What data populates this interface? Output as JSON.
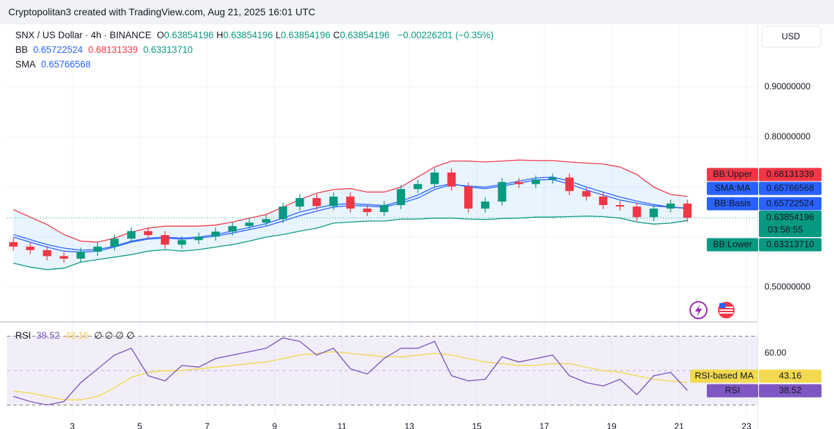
{
  "header": {
    "text": "Cryptopolitan3 created with TradingView.com, Aug 21, 2025 16:01 UTC"
  },
  "legend": {
    "symbol": "SNX / US Dollar · 4h · BINANCE",
    "ohlc": [
      {
        "key": "O",
        "value": "0.63854196"
      },
      {
        "key": "H",
        "value": "0.63854196"
      },
      {
        "key": "L",
        "value": "0.63854196"
      },
      {
        "key": "C",
        "value": "0.63854196"
      }
    ],
    "change": "−0.00226201 (−0.35%)",
    "bb": "BB",
    "sma": "SMA"
  },
  "currency": "USD",
  "countdown": "03:58:55",
  "rsi_legend": {
    "extra": "∅ ∅ ∅ ∅"
  },
  "chart_data": [
    {
      "type": "candlestick",
      "x": [
        1.25,
        1.75,
        2.25,
        2.75,
        3.25,
        3.75,
        4.25,
        4.75,
        5.25,
        5.75,
        6.25,
        6.75,
        7.25,
        7.75,
        8.25,
        8.75,
        9.25,
        9.75,
        10.25,
        10.75,
        11.25,
        11.75,
        12.25,
        12.75,
        13.25,
        13.75,
        14.25,
        14.75,
        15.25,
        15.75,
        16.25,
        16.75,
        17.25,
        17.75,
        18.25,
        18.75,
        19.25,
        19.75,
        20.25,
        20.75,
        21.25
      ],
      "open": [
        0.59,
        0.581,
        0.574,
        0.562,
        0.557,
        0.571,
        0.581,
        0.597,
        0.612,
        0.604,
        0.585,
        0.594,
        0.601,
        0.611,
        0.622,
        0.629,
        0.636,
        0.661,
        0.678,
        0.662,
        0.681,
        0.657,
        0.65,
        0.664,
        0.696,
        0.706,
        0.729,
        0.701,
        0.657,
        0.671,
        0.71,
        0.706,
        0.715,
        0.719,
        0.692,
        0.681,
        0.664,
        0.661,
        0.64,
        0.657,
        0.667
      ],
      "high": [
        0.598,
        0.589,
        0.582,
        0.57,
        0.579,
        0.589,
        0.605,
        0.62,
        0.62,
        0.612,
        0.602,
        0.609,
        0.619,
        0.63,
        0.637,
        0.644,
        0.669,
        0.686,
        0.686,
        0.689,
        0.689,
        0.665,
        0.672,
        0.704,
        0.714,
        0.737,
        0.737,
        0.709,
        0.679,
        0.718,
        0.718,
        0.723,
        0.727,
        0.727,
        0.7,
        0.689,
        0.672,
        0.669,
        0.665,
        0.675,
        0.675
      ],
      "low": [
        0.573,
        0.566,
        0.554,
        0.549,
        0.549,
        0.563,
        0.573,
        0.589,
        0.596,
        0.577,
        0.577,
        0.586,
        0.593,
        0.603,
        0.614,
        0.621,
        0.628,
        0.653,
        0.654,
        0.654,
        0.649,
        0.642,
        0.642,
        0.656,
        0.688,
        0.698,
        0.693,
        0.649,
        0.649,
        0.663,
        0.698,
        0.698,
        0.707,
        0.684,
        0.673,
        0.656,
        0.653,
        0.632,
        0.632,
        0.649,
        0.63
      ],
      "close": [
        0.581,
        0.574,
        0.562,
        0.557,
        0.571,
        0.581,
        0.597,
        0.612,
        0.604,
        0.585,
        0.594,
        0.601,
        0.611,
        0.622,
        0.629,
        0.636,
        0.661,
        0.678,
        0.662,
        0.681,
        0.657,
        0.65,
        0.664,
        0.696,
        0.706,
        0.729,
        0.701,
        0.657,
        0.671,
        0.71,
        0.706,
        0.715,
        0.719,
        0.692,
        0.681,
        0.664,
        0.661,
        0.64,
        0.657,
        0.667,
        0.63854196
      ],
      "close_label": "0.63854196",
      "up_color": "#089981",
      "down_color": "#f23645",
      "series": [
        {
          "name": "BB:Upper",
          "color": "#f23645",
          "value_label": "0.68131339",
          "values": [
            0.655,
            0.64,
            0.625,
            0.605,
            0.592,
            0.59,
            0.598,
            0.61,
            0.618,
            0.622,
            0.622,
            0.622,
            0.624,
            0.63,
            0.638,
            0.645,
            0.66,
            0.675,
            0.688,
            0.695,
            0.697,
            0.69,
            0.69,
            0.7,
            0.72,
            0.74,
            0.752,
            0.752,
            0.75,
            0.752,
            0.754,
            0.753,
            0.753,
            0.75,
            0.748,
            0.746,
            0.74,
            0.725,
            0.7,
            0.685,
            0.68131339
          ]
        },
        {
          "name": "SMA:MA",
          "color": "#2962ff",
          "value_label": "0.65766568",
          "values": [
            0.605,
            0.595,
            0.585,
            0.578,
            0.574,
            0.575,
            0.582,
            0.592,
            0.598,
            0.6,
            0.598,
            0.6,
            0.605,
            0.612,
            0.619,
            0.627,
            0.638,
            0.65,
            0.658,
            0.665,
            0.667,
            0.665,
            0.663,
            0.672,
            0.684,
            0.7,
            0.707,
            0.7,
            0.697,
            0.702,
            0.708,
            0.714,
            0.715,
            0.706,
            0.694,
            0.684,
            0.674,
            0.668,
            0.662,
            0.66,
            0.65766568
          ]
        },
        {
          "name": "BB:Basis",
          "color": "#2962ff",
          "value_label": "0.65722524",
          "values": [
            0.6,
            0.59,
            0.58,
            0.572,
            0.57,
            0.572,
            0.58,
            0.59,
            0.596,
            0.598,
            0.596,
            0.598,
            0.602,
            0.608,
            0.615,
            0.622,
            0.632,
            0.643,
            0.652,
            0.66,
            0.663,
            0.662,
            0.66,
            0.668,
            0.678,
            0.695,
            0.705,
            0.702,
            0.7,
            0.705,
            0.712,
            0.718,
            0.72,
            0.712,
            0.7,
            0.69,
            0.68,
            0.672,
            0.665,
            0.66,
            0.65722524
          ]
        },
        {
          "name": "BB:Lower",
          "color": "#089981",
          "value_label": "0.63313710",
          "values": [
            0.548,
            0.54,
            0.535,
            0.538,
            0.55,
            0.555,
            0.56,
            0.565,
            0.572,
            0.575,
            0.572,
            0.575,
            0.58,
            0.585,
            0.592,
            0.6,
            0.605,
            0.612,
            0.618,
            0.628,
            0.63,
            0.632,
            0.632,
            0.636,
            0.636,
            0.638,
            0.638,
            0.636,
            0.635,
            0.637,
            0.638,
            0.64,
            0.64,
            0.641,
            0.642,
            0.641,
            0.638,
            0.63,
            0.626,
            0.628,
            0.6331371
          ]
        }
      ],
      "band_fill": "rgba(33,150,243,0.10)",
      "xlim": [
        1.06,
        23.33
      ],
      "xticks": [
        3,
        5,
        7,
        9,
        11,
        13,
        15,
        17,
        19,
        21,
        23
      ],
      "ylim": [
        0.432,
        1.025
      ],
      "yticks": [
        {
          "value": 0.5,
          "label": "0.50000000"
        },
        {
          "value": 0.6,
          "label": ""
        },
        {
          "value": 0.7,
          "label": ""
        },
        {
          "value": 0.8,
          "label": "0.80000000"
        },
        {
          "value": 0.9,
          "label": "0.90000000"
        }
      ],
      "grid": true
    },
    {
      "type": "line",
      "x": [
        1.25,
        1.75,
        2.25,
        2.75,
        3.25,
        3.75,
        4.25,
        4.75,
        5.25,
        5.75,
        6.25,
        6.75,
        7.25,
        7.75,
        8.25,
        8.75,
        9.25,
        9.75,
        10.25,
        10.75,
        11.25,
        11.75,
        12.25,
        12.75,
        13.25,
        13.75,
        14.25,
        14.75,
        15.25,
        15.75,
        16.25,
        16.75,
        17.25,
        17.75,
        18.25,
        18.75,
        19.25,
        19.75,
        20.25,
        20.75,
        21.25
      ],
      "series": [
        {
          "name": "RSI",
          "color": "#7e57c2",
          "values": [
            35,
            32,
            30,
            32,
            43,
            51,
            59,
            63,
            47,
            44,
            53,
            52,
            57,
            59,
            61,
            63,
            69,
            67,
            59,
            63,
            51,
            48,
            57,
            63,
            63,
            67,
            47,
            44,
            45,
            58,
            55,
            57,
            59,
            47,
            43,
            41,
            45,
            36,
            47,
            49,
            38.52
          ]
        },
        {
          "name": "RSI-based MA",
          "color": "#f2d94e",
          "values": [
            38,
            37,
            35,
            33,
            33,
            35,
            40,
            46,
            49,
            50,
            50,
            51,
            52,
            53,
            54,
            55,
            57,
            59,
            60,
            61,
            60,
            59,
            58,
            58,
            59,
            60,
            59,
            57,
            55,
            54,
            53,
            53,
            54,
            54,
            52,
            50,
            49,
            47,
            45,
            44,
            43.16
          ]
        }
      ],
      "levels": [
        30,
        50,
        70
      ],
      "band_color": "rgba(126,87,194,0.10)",
      "xlim": [
        1.06,
        23.33
      ],
      "xticks": [
        3,
        5,
        7,
        9,
        11,
        13,
        15,
        17,
        19,
        21,
        23
      ],
      "ylim": [
        22.9,
        77.5
      ],
      "yticks": [
        {
          "value": 60,
          "label": "60.00"
        }
      ],
      "grid": true
    }
  ]
}
